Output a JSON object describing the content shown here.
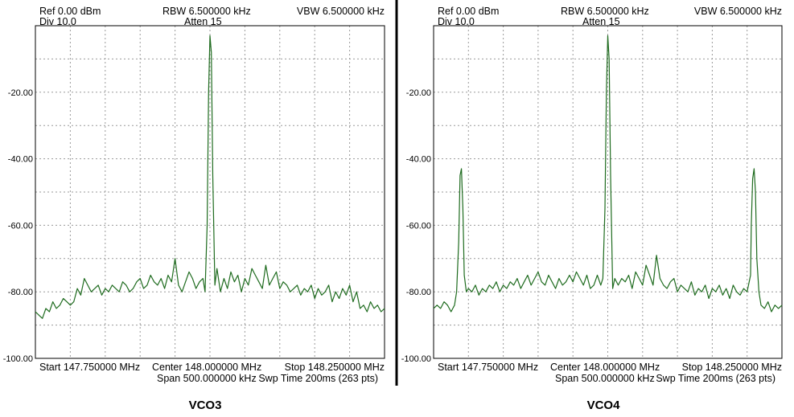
{
  "colors": {
    "trace": "#1e6b1e",
    "grid": "#9a9a9a",
    "frame": "#000000",
    "divider": "#000000"
  },
  "chart_data": [
    {
      "type": "line",
      "caption": "VCO3",
      "header": {
        "ref": "Ref 0.00 dBm",
        "div": "Div 10.0",
        "rbw": "RBW 6.500000 kHz",
        "atten": "Atten 15",
        "vbw": "VBW 6.500000 kHz"
      },
      "footer": {
        "start": "Start 147.750000 MHz",
        "center": "Center 148.000000 MHz",
        "stop": "Stop 148.250000 MHz",
        "span": "Span 500.000000 kHz",
        "sweep": "Swp Time 200ms (263 pts)"
      },
      "y_ticks": [
        "-20.00",
        "-40.00",
        "-60.00",
        "-80.00",
        "-100.00"
      ],
      "y_tick_values": [
        -20,
        -40,
        -60,
        -80,
        -100
      ],
      "xlim": [
        147.75,
        148.25
      ],
      "ylim": [
        -100,
        0
      ],
      "grid": true,
      "x": [
        147.75,
        147.755,
        147.76,
        147.765,
        147.77,
        147.775,
        147.78,
        147.785,
        147.79,
        147.795,
        147.8,
        147.805,
        147.81,
        147.815,
        147.82,
        147.825,
        147.83,
        147.835,
        147.84,
        147.845,
        147.85,
        147.855,
        147.86,
        147.865,
        147.87,
        147.875,
        147.88,
        147.885,
        147.89,
        147.895,
        147.9,
        147.905,
        147.91,
        147.915,
        147.92,
        147.925,
        147.93,
        147.935,
        147.94,
        147.945,
        147.95,
        147.955,
        147.96,
        147.965,
        147.97,
        147.975,
        147.98,
        147.985,
        147.99,
        147.993,
        147.996,
        147.998,
        148.0,
        148.002,
        148.004,
        148.007,
        148.01,
        148.015,
        148.02,
        148.025,
        148.03,
        148.035,
        148.04,
        148.045,
        148.05,
        148.055,
        148.06,
        148.065,
        148.07,
        148.075,
        148.08,
        148.085,
        148.09,
        148.095,
        148.1,
        148.105,
        148.11,
        148.115,
        148.12,
        148.125,
        148.13,
        148.135,
        148.14,
        148.145,
        148.15,
        148.155,
        148.16,
        148.165,
        148.17,
        148.175,
        148.18,
        148.185,
        148.19,
        148.195,
        148.2,
        148.205,
        148.21,
        148.215,
        148.22,
        148.225,
        148.23,
        148.235,
        148.24,
        148.245,
        148.25
      ],
      "y": [
        -86,
        -87,
        -88,
        -85,
        -86,
        -83,
        -85,
        -84,
        -82,
        -83,
        -84,
        -83,
        -79,
        -81,
        -76,
        -78,
        -80,
        -79,
        -78,
        -81,
        -79,
        -80,
        -78,
        -79,
        -80,
        -77,
        -78,
        -80,
        -79,
        -77,
        -76,
        -79,
        -78,
        -75,
        -77,
        -78,
        -76,
        -79,
        -75,
        -77,
        -70,
        -78,
        -80,
        -77,
        -74,
        -76,
        -79,
        -77,
        -76,
        -80,
        -60,
        -20,
        -3,
        -8,
        -45,
        -78,
        -73,
        -80,
        -76,
        -79,
        -74,
        -77,
        -75,
        -80,
        -76,
        -78,
        -73,
        -75,
        -77,
        -79,
        -72,
        -78,
        -76,
        -74,
        -79,
        -77,
        -78,
        -80,
        -79,
        -78,
        -81,
        -79,
        -80,
        -78,
        -82,
        -79,
        -81,
        -80,
        -78,
        -83,
        -80,
        -82,
        -79,
        -81,
        -78,
        -83,
        -80,
        -85,
        -84,
        -86,
        -83,
        -85,
        -84,
        -86,
        -85
      ]
    },
    {
      "type": "line",
      "caption": "VCO4",
      "header": {
        "ref": "Ref 0.00 dBm",
        "div": "Div 10.0",
        "rbw": "RBW 6.500000 kHz",
        "atten": "Atten 15",
        "vbw": "VBW 6.500000 kHz"
      },
      "footer": {
        "start": "Start 147.750000 MHz",
        "center": "Center 148.000000 MHz",
        "stop": "Stop 148.250000 MHz",
        "span": "Span 500.000000 kHz",
        "sweep": "Swp Time 200ms (263 pts)"
      },
      "y_ticks": [
        "-20.00",
        "-40.00",
        "-60.00",
        "-80.00",
        "-100.00"
      ],
      "y_tick_values": [
        -20,
        -40,
        -60,
        -80,
        -100
      ],
      "xlim": [
        147.75,
        148.25
      ],
      "ylim": [
        -100,
        0
      ],
      "grid": true,
      "x": [
        147.75,
        147.755,
        147.76,
        147.765,
        147.77,
        147.775,
        147.78,
        147.783,
        147.786,
        147.788,
        147.79,
        147.792,
        147.794,
        147.797,
        147.8,
        147.805,
        147.81,
        147.815,
        147.82,
        147.825,
        147.83,
        147.835,
        147.84,
        147.845,
        147.85,
        147.855,
        147.86,
        147.865,
        147.87,
        147.875,
        147.88,
        147.885,
        147.89,
        147.895,
        147.9,
        147.905,
        147.91,
        147.915,
        147.92,
        147.925,
        147.93,
        147.935,
        147.94,
        147.945,
        147.95,
        147.955,
        147.96,
        147.965,
        147.97,
        147.975,
        147.98,
        147.985,
        147.99,
        147.993,
        147.996,
        147.998,
        148.0,
        148.002,
        148.004,
        148.007,
        148.01,
        148.015,
        148.02,
        148.025,
        148.03,
        148.035,
        148.04,
        148.045,
        148.05,
        148.055,
        148.06,
        148.065,
        148.07,
        148.075,
        148.08,
        148.085,
        148.09,
        148.095,
        148.1,
        148.105,
        148.11,
        148.115,
        148.12,
        148.125,
        148.13,
        148.135,
        148.14,
        148.145,
        148.15,
        148.155,
        148.16,
        148.165,
        148.17,
        148.175,
        148.18,
        148.185,
        148.19,
        148.195,
        148.2,
        148.205,
        148.206,
        148.208,
        148.21,
        148.212,
        148.214,
        148.217,
        148.22,
        148.225,
        148.23,
        148.235,
        148.24,
        148.245,
        148.25
      ],
      "y": [
        -85,
        -84,
        -85,
        -83,
        -84,
        -86,
        -84,
        -80,
        -65,
        -45,
        -43,
        -55,
        -75,
        -80,
        -79,
        -80,
        -78,
        -81,
        -79,
        -80,
        -78,
        -79,
        -77,
        -80,
        -78,
        -79,
        -77,
        -78,
        -76,
        -79,
        -77,
        -75,
        -78,
        -76,
        -74,
        -77,
        -78,
        -75,
        -77,
        -79,
        -76,
        -78,
        -77,
        -75,
        -77,
        -74,
        -76,
        -78,
        -75,
        -79,
        -78,
        -75,
        -78,
        -76,
        -55,
        -20,
        -3,
        -10,
        -45,
        -79,
        -76,
        -78,
        -76,
        -77,
        -75,
        -79,
        -74,
        -76,
        -78,
        -72,
        -75,
        -78,
        -69,
        -76,
        -78,
        -79,
        -77,
        -76,
        -80,
        -78,
        -79,
        -80,
        -77,
        -81,
        -79,
        -80,
        -78,
        -82,
        -79,
        -80,
        -78,
        -81,
        -79,
        -82,
        -78,
        -80,
        -81,
        -79,
        -80,
        -75,
        -60,
        -46,
        -43,
        -50,
        -70,
        -80,
        -84,
        -85,
        -83,
        -86,
        -84,
        -85,
        -84
      ]
    }
  ]
}
